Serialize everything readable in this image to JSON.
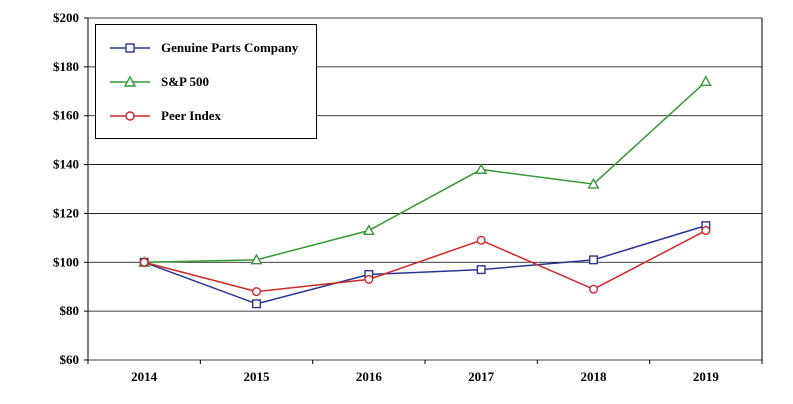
{
  "chart_data": {
    "type": "line",
    "title": "",
    "xlabel": "",
    "ylabel": "",
    "categories": [
      "2014",
      "2015",
      "2016",
      "2017",
      "2018",
      "2019"
    ],
    "series": [
      {
        "name": "Genuine Parts Company",
        "marker": "square",
        "color": "#273691",
        "values": [
          100,
          83,
          95,
          97,
          101,
          115
        ]
      },
      {
        "name": "S&P 500",
        "marker": "triangle",
        "color": "#359A35",
        "values": [
          100,
          101,
          113,
          138,
          132,
          174
        ]
      },
      {
        "name": "Peer Index",
        "marker": "circle",
        "color": "#CC2929",
        "values": [
          100,
          88,
          93,
          109,
          89,
          113
        ]
      }
    ],
    "ylim": [
      60,
      200
    ],
    "ytick_step": 20,
    "ytick_labels": [
      "$60",
      "$80",
      "$100",
      "$120",
      "$140",
      "$160",
      "$180",
      "$200"
    ],
    "grid": "horizontal",
    "legend_position": "top-left",
    "colors": {
      "axis": "#000000",
      "gridline": "#000000",
      "background": "#ffffff",
      "marker_fill": "#ffffff"
    }
  }
}
